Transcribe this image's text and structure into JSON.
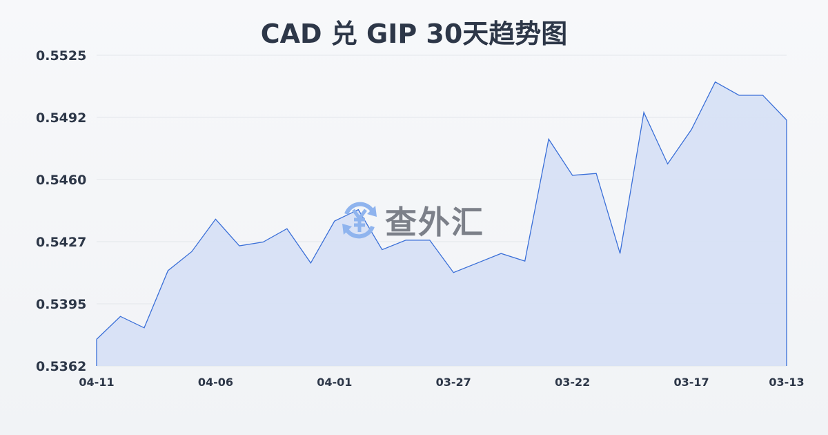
{
  "title": "CAD 兑 GIP 30天趋势图",
  "watermark": {
    "text": "查外汇",
    "icon": "yuan-exchange-icon"
  },
  "colors": {
    "line": "#3a6fd8",
    "fill": "#d6e0f5",
    "grid": "#e3e6ea",
    "text": "#2d3748"
  },
  "chart_data": {
    "type": "area",
    "title": "CAD 兑 GIP 30天趋势图",
    "xlabel": "",
    "ylabel": "",
    "ylim": [
      0.5362,
      0.5525
    ],
    "yticks": [
      "0.5525",
      "0.5492",
      "0.5460",
      "0.5427",
      "0.5395",
      "0.5362"
    ],
    "xticks": [
      "04-11",
      "04-06",
      "04-01",
      "03-27",
      "03-22",
      "03-17",
      "03-13"
    ],
    "grid": true,
    "x": [
      "04-11",
      "04-10",
      "04-09",
      "04-08",
      "04-07",
      "04-06",
      "04-05",
      "04-04",
      "04-03",
      "04-02",
      "04-01",
      "03-31",
      "03-30",
      "03-29",
      "03-28",
      "03-27",
      "03-26",
      "03-25",
      "03-24",
      "03-23",
      "03-22",
      "03-21",
      "03-20",
      "03-19",
      "03-18",
      "03-17",
      "03-16",
      "03-15",
      "03-14",
      "03-13"
    ],
    "values": [
      0.5376,
      0.5388,
      0.5382,
      0.5412,
      0.5422,
      0.5439,
      0.5425,
      0.5427,
      0.5434,
      0.5416,
      0.5438,
      0.5444,
      0.5423,
      0.5428,
      0.5428,
      0.5411,
      0.5416,
      0.5421,
      0.5417,
      0.5481,
      0.5462,
      0.5463,
      0.5421,
      0.5495,
      0.5468,
      0.5486,
      0.5511,
      0.5504,
      0.5504,
      0.5491
    ]
  }
}
